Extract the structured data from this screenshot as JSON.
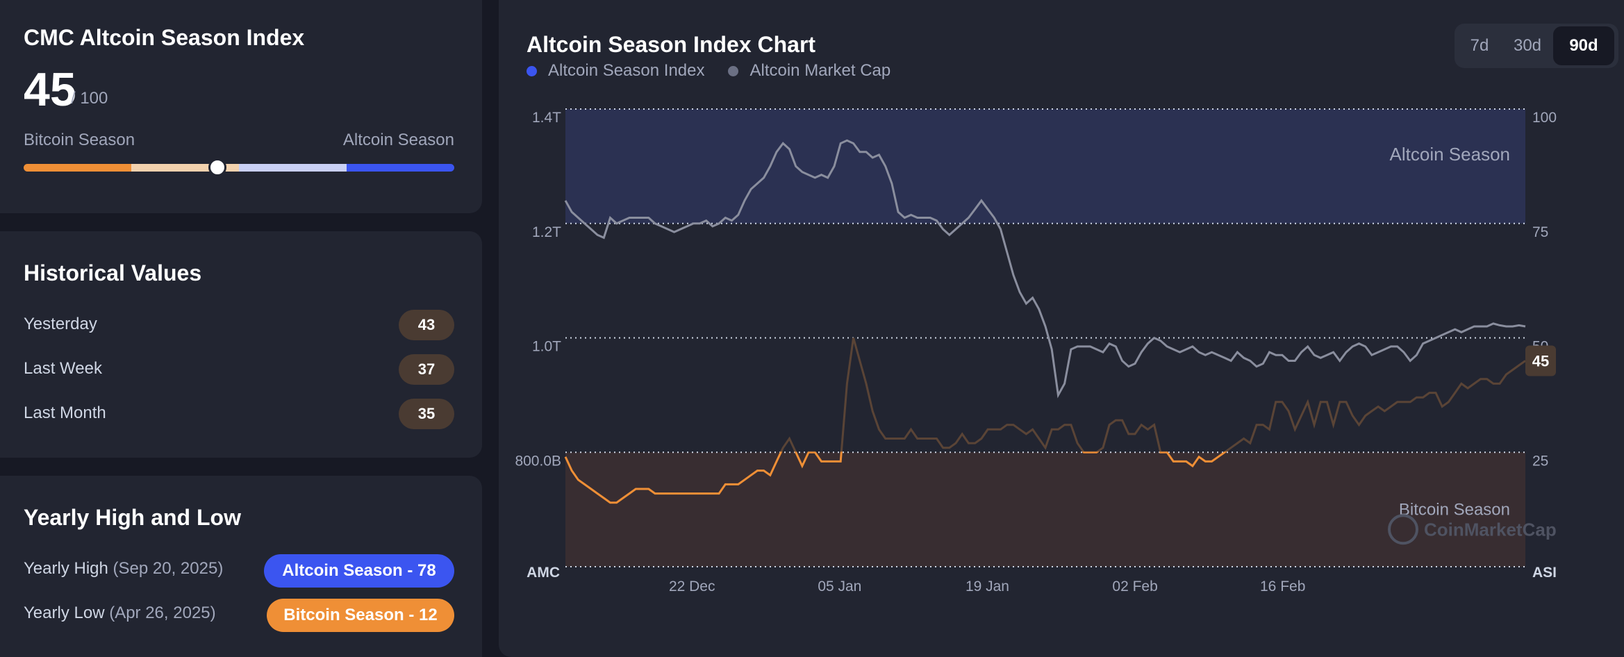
{
  "index_card": {
    "title": "CMC Altcoin Season Index",
    "value": "45",
    "max": "/ 100",
    "left_label": "Bitcoin Season",
    "right_label": "Altcoin Season",
    "gauge_value": 45
  },
  "historical": {
    "title": "Historical Values",
    "rows": [
      {
        "label": "Yesterday",
        "value": "43"
      },
      {
        "label": "Last Week",
        "value": "37"
      },
      {
        "label": "Last Month",
        "value": "35"
      }
    ]
  },
  "yearly": {
    "title": "Yearly High and Low",
    "high_label": "Yearly High",
    "high_date": "(Sep 20, 2025)",
    "high_badge": "Altcoin Season - 78",
    "low_label": "Yearly Low",
    "low_date": "(Apr 26, 2025)",
    "low_badge": "Bitcoin Season - 12"
  },
  "chart_panel": {
    "title": "Altcoin Season Index Chart",
    "legend": [
      "Altcoin Season Index",
      "Altcoin Market Cap"
    ],
    "ranges": [
      "7d",
      "30d",
      "90d"
    ],
    "active_range": "90d",
    "zone_top_label": "Altcoin Season",
    "zone_bottom_label": "Bitcoin Season",
    "watermark": "CoinMarketCap",
    "current_value_badge": "45",
    "left_axis_title": "AMC",
    "right_axis_title": "ASI"
  },
  "colors": {
    "index_line": "#ef8f36",
    "market_cap_line": "#8a8e9e",
    "legend_index_dot": "#3b55f0",
    "legend_mcap_dot": "#6b7084",
    "altcoin_zone": "#2b3152",
    "bitcoin_zone": "#382d31"
  },
  "chart_data": {
    "type": "line",
    "x_ticks": [
      "22 Dec",
      "05 Jan",
      "19 Jan",
      "02 Feb",
      "16 Feb"
    ],
    "y_left_ticks": [
      "1.4T",
      "1.2T",
      "1.0T",
      "800.0B"
    ],
    "y_right_ticks": [
      "100",
      "75",
      "50",
      "25"
    ],
    "ylim_right": [
      0,
      100
    ],
    "ylim_left": [
      600,
      1400
    ],
    "grid": true,
    "series": [
      {
        "name": "Altcoin Season Index",
        "axis": "right",
        "values": [
          24,
          21,
          19,
          18,
          17,
          16,
          15,
          14,
          14,
          15,
          16,
          17,
          17,
          17,
          16,
          16,
          16,
          16,
          16,
          16,
          16,
          16,
          16,
          16,
          16,
          18,
          18,
          18,
          19,
          20,
          21,
          21,
          20,
          23,
          26,
          28,
          25,
          22,
          25,
          25,
          23,
          23,
          23,
          23,
          40,
          50,
          45,
          40,
          34,
          30,
          28,
          28,
          28,
          28,
          30,
          28,
          28,
          28,
          28,
          26,
          26,
          27,
          29,
          27,
          27,
          28,
          30,
          30,
          30,
          31,
          31,
          30,
          29,
          30,
          28,
          26,
          30,
          30,
          31,
          31,
          27,
          25,
          25,
          25,
          26,
          31,
          32,
          32,
          29,
          29,
          31,
          30,
          31,
          25,
          25,
          23,
          23,
          23,
          22,
          24,
          23,
          23,
          24,
          25,
          26,
          27,
          28,
          27,
          31,
          31,
          30,
          36,
          36,
          34,
          30,
          33,
          36,
          31,
          36,
          36,
          31,
          36,
          36,
          33,
          31,
          33,
          34,
          35,
          34,
          35,
          36,
          36,
          36,
          37,
          37,
          38,
          38,
          35,
          36,
          38,
          40,
          39,
          40,
          41,
          41,
          40,
          40,
          42,
          43,
          44,
          45
        ]
      },
      {
        "name": "Altcoin Market Cap",
        "axis": "left",
        "unit": "USD",
        "values": [
          1240,
          1220,
          1210,
          1200,
          1190,
          1180,
          1175,
          1210,
          1200,
          1205,
          1210,
          1210,
          1210,
          1210,
          1200,
          1195,
          1190,
          1185,
          1190,
          1195,
          1200,
          1200,
          1205,
          1195,
          1200,
          1210,
          1205,
          1215,
          1240,
          1260,
          1270,
          1280,
          1300,
          1325,
          1340,
          1330,
          1300,
          1290,
          1285,
          1280,
          1285,
          1280,
          1300,
          1340,
          1345,
          1340,
          1325,
          1325,
          1315,
          1320,
          1300,
          1270,
          1220,
          1210,
          1215,
          1210,
          1210,
          1210,
          1205,
          1190,
          1180,
          1190,
          1200,
          1210,
          1225,
          1240,
          1225,
          1210,
          1190,
          1150,
          1110,
          1080,
          1060,
          1070,
          1050,
          1020,
          980,
          900,
          920,
          980,
          985,
          985,
          985,
          980,
          975,
          990,
          985,
          960,
          950,
          955,
          975,
          990,
          1000,
          995,
          985,
          980,
          975,
          980,
          985,
          975,
          970,
          975,
          970,
          965,
          960,
          975,
          965,
          960,
          950,
          955,
          975,
          970,
          970,
          960,
          960,
          975,
          985,
          970,
          965,
          970,
          975,
          960,
          975,
          985,
          990,
          985,
          970,
          975,
          980,
          985,
          985,
          975,
          960,
          970,
          990,
          995,
          1000,
          1005,
          1010,
          1015,
          1010,
          1015,
          1020,
          1020,
          1020,
          1025,
          1022,
          1020,
          1020,
          1022,
          1020
        ]
      }
    ]
  }
}
